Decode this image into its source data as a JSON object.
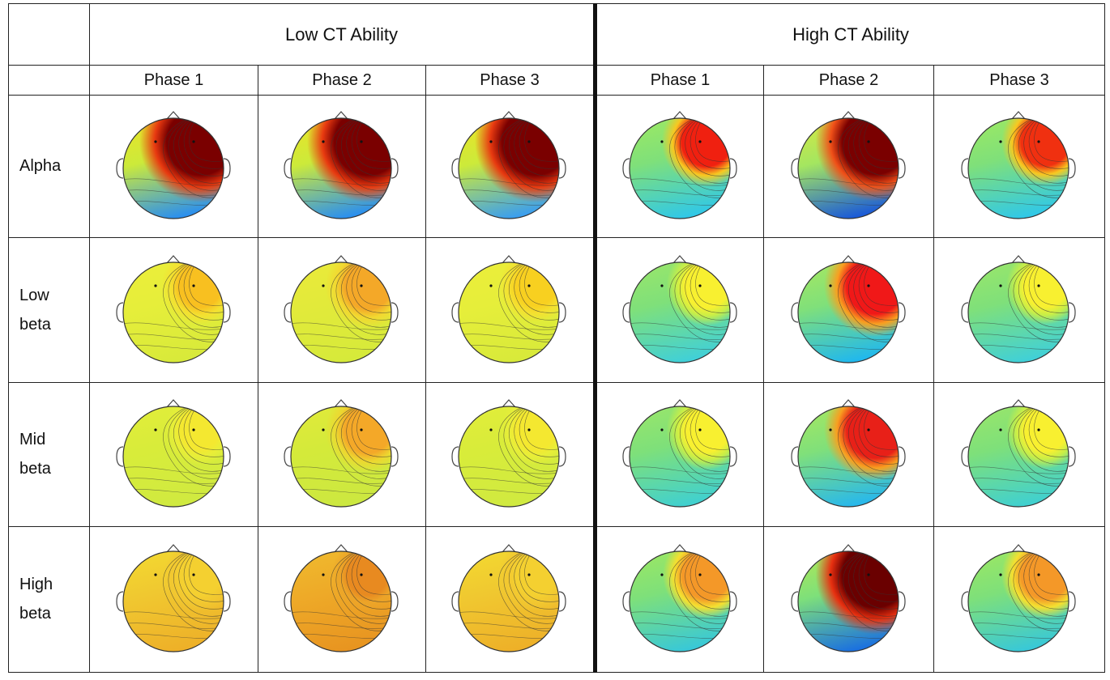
{
  "groups": [
    "Low CT Ability",
    "High CT Ability"
  ],
  "phases": [
    "Phase 1",
    "Phase 2",
    "Phase 3",
    "Phase 1",
    "Phase 2",
    "Phase 3"
  ],
  "bands": [
    {
      "line1": "Alpha",
      "line2": ""
    },
    {
      "line1": "Low",
      "line2": "beta"
    },
    {
      "line1": "Mid",
      "line2": "beta"
    },
    {
      "line1": "High",
      "line2": "beta"
    }
  ],
  "maps": [
    [
      {
        "bg": "#ccea3a",
        "top": "#f7e020",
        "bottom": "#2a8ff0",
        "hot": "#7a0000",
        "mid": "#e83a10",
        "intensity": 1.0
      },
      {
        "bg": "#ccea3a",
        "top": "#f7e020",
        "bottom": "#2a8ff0",
        "hot": "#7a0000",
        "mid": "#e83a10",
        "intensity": 1.0
      },
      {
        "bg": "#ccea3a",
        "top": "#f7e020",
        "bottom": "#3a9ef0",
        "hot": "#7a0000",
        "mid": "#e83a10",
        "intensity": 1.0
      },
      {
        "bg": "#7fe07a",
        "top": "#a8ec5a",
        "bottom": "#30c8e8",
        "hot": "#f02010",
        "mid": "#f8c820",
        "intensity": 0.55
      },
      {
        "bg": "#a4e660",
        "top": "#e8e83a",
        "bottom": "#1a5ad8",
        "hot": "#7a0000",
        "mid": "#f05018",
        "intensity": 0.95
      },
      {
        "bg": "#7fe07a",
        "top": "#a8ec5a",
        "bottom": "#30c8e8",
        "hot": "#f03010",
        "mid": "#f8c820",
        "intensity": 0.5
      }
    ],
    [
      {
        "bg": "#e6ee3a",
        "top": "#eeee3a",
        "bottom": "#d8ea3a",
        "hot": "#f8c020",
        "mid": "#f4e030",
        "intensity": 0.35
      },
      {
        "bg": "#e2ea3a",
        "top": "#eeea3a",
        "bottom": "#d6ea3a",
        "hot": "#f4a828",
        "mid": "#f2d830",
        "intensity": 0.45
      },
      {
        "bg": "#e6ee3a",
        "top": "#eeee3a",
        "bottom": "#d8ea3a",
        "hot": "#f8d020",
        "mid": "#f4e030",
        "intensity": 0.3
      },
      {
        "bg": "#7fe07a",
        "top": "#a4e864",
        "bottom": "#40d0d8",
        "hot": "#f8f030",
        "mid": "#c8ee48",
        "intensity": 0.4
      },
      {
        "bg": "#80e07a",
        "top": "#b4ea58",
        "bottom": "#20b8ee",
        "hot": "#f01818",
        "mid": "#f8a020",
        "intensity": 0.7
      },
      {
        "bg": "#7fe07a",
        "top": "#a4e864",
        "bottom": "#40d0d8",
        "hot": "#f8f030",
        "mid": "#c8ee48",
        "intensity": 0.35
      }
    ],
    [
      {
        "bg": "#d8ec3a",
        "top": "#e6ee3a",
        "bottom": "#d0ea40",
        "hot": "#f4e830",
        "mid": "#e8ee38",
        "intensity": 0.25
      },
      {
        "bg": "#d4ea3a",
        "top": "#e6ea3a",
        "bottom": "#cce840",
        "hot": "#f4a828",
        "mid": "#ecd830",
        "intensity": 0.45
      },
      {
        "bg": "#d8ec3a",
        "top": "#e6ee3a",
        "bottom": "#d0ea40",
        "hot": "#f4e830",
        "mid": "#e8ee38",
        "intensity": 0.25
      },
      {
        "bg": "#7ee07a",
        "top": "#a4e864",
        "bottom": "#40d0d0",
        "hot": "#f8f030",
        "mid": "#c8ee48",
        "intensity": 0.4
      },
      {
        "bg": "#80e07a",
        "top": "#b4ea58",
        "bottom": "#28b8ec",
        "hot": "#e82018",
        "mid": "#f8a020",
        "intensity": 0.7
      },
      {
        "bg": "#7ee07a",
        "top": "#a4e864",
        "bottom": "#40d0d0",
        "hot": "#f8f030",
        "mid": "#c8ee48",
        "intensity": 0.35
      }
    ],
    [
      {
        "bg": "#f0c830",
        "top": "#f4e030",
        "bottom": "#eeb028",
        "hot": "#f4d030",
        "mid": "#f2c830",
        "intensity": 0.3
      },
      {
        "bg": "#eeaa28",
        "top": "#f0c030",
        "bottom": "#e89420",
        "hot": "#e88a20",
        "mid": "#eca428",
        "intensity": 0.3
      },
      {
        "bg": "#f0c830",
        "top": "#f4e030",
        "bottom": "#eeb028",
        "hot": "#f4d030",
        "mid": "#f2c830",
        "intensity": 0.3
      },
      {
        "bg": "#7ee07a",
        "top": "#a8ea5a",
        "bottom": "#38c8d8",
        "hot": "#f49828",
        "mid": "#f4e030",
        "intensity": 0.5
      },
      {
        "bg": "#7ee07a",
        "top": "#c4ea48",
        "bottom": "#1a70e0",
        "hot": "#6a0000",
        "mid": "#e83010",
        "intensity": 0.95
      },
      {
        "bg": "#7ee07a",
        "top": "#a8ea5a",
        "bottom": "#38c8d8",
        "hot": "#f49828",
        "mid": "#f4e030",
        "intensity": 0.5
      }
    ]
  ]
}
